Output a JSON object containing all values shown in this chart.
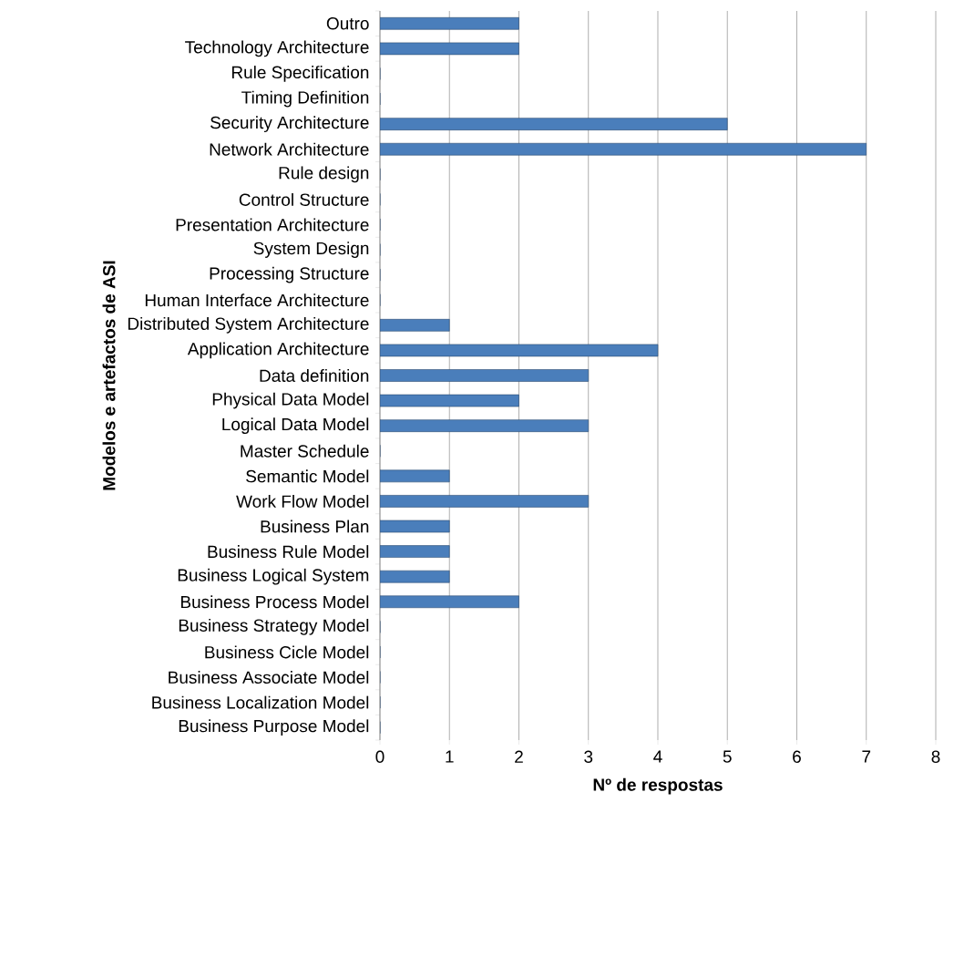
{
  "chart_data": {
    "type": "bar",
    "orientation": "horizontal",
    "xlabel": "Nº de respostas",
    "ylabel": "Modelos e artefactos de ASI",
    "categories": [
      "Outro",
      "Technology Architecture",
      "Rule Specification",
      "Timing Definition",
      "Security Architecture",
      "Network Architecture",
      "Rule design",
      "Control Structure",
      "Presentation Architecture",
      "System Design",
      "Processing Structure",
      "Human Interface Architecture",
      "Distributed System Architecture",
      "Application Architecture",
      "Data definition",
      "Physical Data Model",
      "Logical Data Model",
      "Master Schedule",
      "Semantic Model",
      "Work Flow Model",
      "Business Plan",
      "Business Rule Model",
      "Business Logical System",
      "Business Process Model",
      "Business Strategy Model",
      "Business Cicle Model",
      "Business Associate Model",
      "Business Localization Model",
      "Business Purpose Model"
    ],
    "values": [
      2,
      2,
      0,
      0,
      5,
      7,
      0,
      0,
      0,
      0,
      0,
      0,
      1,
      4,
      3,
      2,
      3,
      0,
      1,
      3,
      1,
      1,
      1,
      2,
      0,
      0,
      0,
      0,
      0
    ],
    "color": "#4a7ebb",
    "xlim": [
      0,
      8
    ],
    "xticks": [
      0,
      1,
      2,
      3,
      4,
      5,
      6,
      7,
      8
    ],
    "grid": "x"
  }
}
